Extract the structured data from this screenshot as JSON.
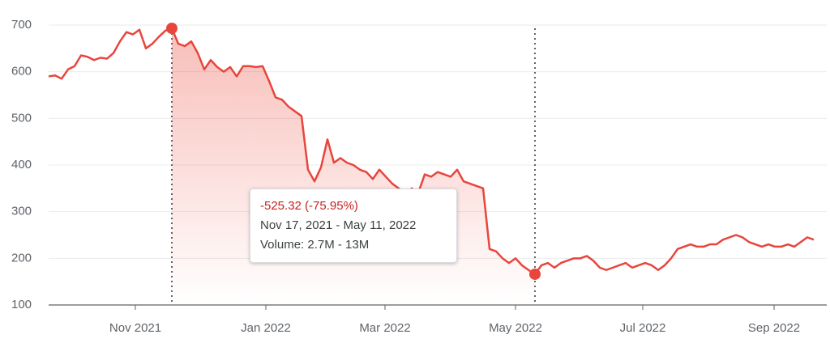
{
  "chart_data": {
    "type": "line",
    "color": "#e8453c",
    "values": [
      590,
      592,
      585,
      605,
      612,
      635,
      632,
      625,
      630,
      628,
      640,
      665,
      685,
      680,
      690,
      650,
      660,
      675,
      688,
      693,
      660,
      655,
      665,
      640,
      605,
      625,
      610,
      600,
      610,
      590,
      612,
      612,
      610,
      612,
      580,
      545,
      540,
      525,
      515,
      505,
      390,
      365,
      395,
      455,
      405,
      415,
      405,
      400,
      390,
      385,
      370,
      390,
      375,
      360,
      350,
      335,
      350,
      340,
      380,
      375,
      385,
      380,
      375,
      390,
      365,
      360,
      355,
      350,
      220,
      215,
      200,
      190,
      200,
      185,
      175,
      166,
      185,
      190,
      180,
      190,
      195,
      200,
      200,
      205,
      195,
      180,
      175,
      180,
      185,
      190,
      180,
      185,
      190,
      185,
      175,
      185,
      200,
      220,
      225,
      230,
      225,
      225,
      230,
      230,
      240,
      245,
      250,
      245,
      235,
      230,
      225,
      230,
      225,
      225,
      230,
      225,
      235,
      245,
      240
    ],
    "xlim": [
      0,
      118
    ],
    "xticks": [
      {
        "value": 13.375,
        "label": "Nov 2021"
      },
      {
        "value": 33.5,
        "label": "Jan 2022"
      },
      {
        "value": 51.875,
        "label": "Mar 2022"
      },
      {
        "value": 72,
        "label": "May 2022"
      },
      {
        "value": 91.625,
        "label": "Jul 2022"
      },
      {
        "value": 111.875,
        "label": "Sep 2022"
      }
    ],
    "ylim": [
      100,
      700
    ],
    "yticks": [
      100,
      200,
      300,
      400,
      500,
      600,
      700
    ],
    "grid": true,
    "range_start": 19,
    "range_end": 75,
    "tooltip": {
      "change": "-525.32 (-75.95%)",
      "dates": "Nov 17, 2021 - May 11, 2022",
      "volume": "Volume: 2.7M - 13M"
    }
  }
}
